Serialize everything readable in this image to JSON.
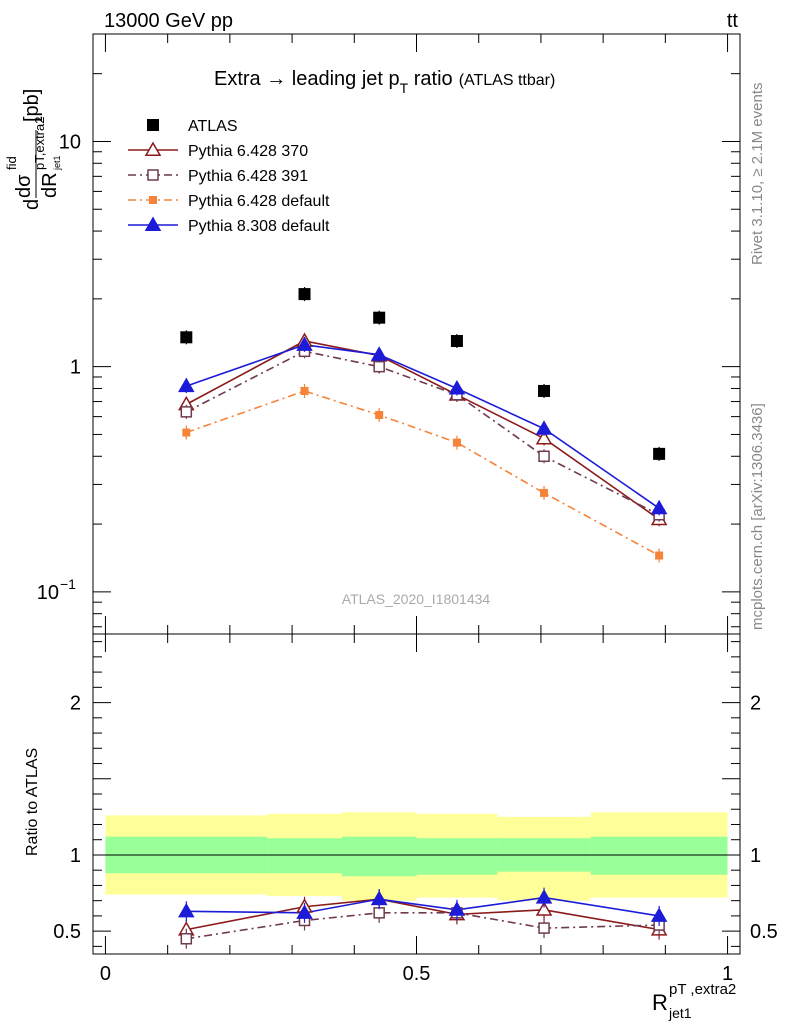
{
  "header": {
    "left": "13000 GeV pp",
    "right_main": "tt",
    "right_bar": "‾"
  },
  "side_text": {
    "rivet": "Rivet 3.1.10, ≥ 2.1M events",
    "mcplots": "mcplots.cern.ch [arXiv:1306.3436]"
  },
  "watermark": "ATLAS_2020_I1801434",
  "chart_data": [
    {
      "panel": "main",
      "type": "scatter",
      "title_main": "Extra → leading jet p",
      "title_sub": "T",
      "title_tail": " ratio",
      "title_note": "(ATLAS ttbar)",
      "ylabel_pre": "d",
      "ylabel_sigma": "dσ",
      "ylabel_sigma_sup": "fid",
      "ylabel_den": "dR",
      "ylabel_den_sup": "pT,extra2",
      "ylabel_den_sub": "jet1",
      "ylabel_unit": "[pb]",
      "yscale": "log",
      "ylim": [
        0.065,
        30
      ],
      "xlim": [
        -0.02,
        1.02
      ],
      "ytick_labels": [
        {
          "value": 10,
          "text": "10"
        },
        {
          "value": 1,
          "text": "1"
        },
        {
          "value": 0.1,
          "base": "10",
          "exp": "−1"
        }
      ],
      "x_bins": [
        [
          0.0,
          0.26
        ],
        [
          0.26,
          0.38
        ],
        [
          0.38,
          0.5
        ],
        [
          0.5,
          0.63
        ],
        [
          0.63,
          0.78
        ],
        [
          0.78,
          1.0
        ]
      ],
      "x": [
        0.13,
        0.32,
        0.44,
        0.565,
        0.705,
        0.89
      ],
      "legend_position": "top-left",
      "series": [
        {
          "name": "ATLAS",
          "color": "#000000",
          "marker": "square",
          "line": "none",
          "values": [
            1.35,
            2.1,
            1.65,
            1.3,
            0.78,
            0.41
          ]
        },
        {
          "name": "Pythia 6.428 370",
          "color": "#8b1a1a",
          "marker": "triangle-open",
          "line": "solid",
          "values": [
            0.68,
            1.3,
            1.12,
            0.75,
            0.48,
            0.21
          ]
        },
        {
          "name": "Pythia 6.428 391",
          "color": "#6e3a4e",
          "marker": "square-open",
          "line": "dashdot",
          "values": [
            0.63,
            1.17,
            1.0,
            0.75,
            0.4,
            0.22
          ]
        },
        {
          "name": "Pythia 6.428 default",
          "color": "#f5843a",
          "marker": "square",
          "line": "dashdot",
          "values": [
            0.51,
            0.78,
            0.61,
            0.46,
            0.275,
            0.145
          ]
        },
        {
          "name": "Pythia 8.308 default",
          "color": "#1c1cd8",
          "marker": "triangle",
          "line": "solid",
          "values": [
            0.82,
            1.25,
            1.13,
            0.8,
            0.53,
            0.235
          ]
        }
      ]
    },
    {
      "panel": "ratio",
      "type": "scatter",
      "ylabel": "Ratio to ATLAS",
      "xlabel_base": "R",
      "xlabel_sup": "pT ,extra2",
      "xlabel_sub": "jet1",
      "ylim": [
        0.35,
        2.45
      ],
      "xlim": [
        -0.02,
        1.02
      ],
      "ytick_labels": [
        {
          "value": 2,
          "text": "2"
        },
        {
          "value": 1,
          "text": "1"
        },
        {
          "value": 0.5,
          "text": "0.5"
        }
      ],
      "xtick_labels": [
        {
          "value": 0,
          "text": "0"
        },
        {
          "value": 0.5,
          "text": "0.5"
        },
        {
          "value": 1,
          "text": "1"
        }
      ],
      "reference_line": 1,
      "bands": {
        "bins": [
          [
            0.0,
            0.26
          ],
          [
            0.26,
            0.38
          ],
          [
            0.38,
            0.5
          ],
          [
            0.5,
            0.63
          ],
          [
            0.63,
            0.78
          ],
          [
            0.78,
            1.0
          ]
        ],
        "yellow": [
          [
            0.74,
            1.26
          ],
          [
            0.73,
            1.27
          ],
          [
            0.7,
            1.28
          ],
          [
            0.72,
            1.27
          ],
          [
            0.7,
            1.25
          ],
          [
            0.72,
            1.28
          ]
        ],
        "green": [
          [
            0.88,
            1.12
          ],
          [
            0.88,
            1.11
          ],
          [
            0.86,
            1.12
          ],
          [
            0.87,
            1.11
          ],
          [
            0.89,
            1.11
          ],
          [
            0.87,
            1.12
          ]
        ],
        "yellow_color": "#ffff99",
        "green_color": "#99ff99"
      },
      "x": [
        0.13,
        0.32,
        0.44,
        0.565,
        0.705,
        0.89
      ],
      "series": [
        {
          "name": "Pythia 6.428 370",
          "color": "#8b1a1a",
          "marker": "triangle-open",
          "line": "solid",
          "values": [
            0.51,
            0.66,
            0.71,
            0.61,
            0.64,
            0.51
          ]
        },
        {
          "name": "Pythia 6.428 391",
          "color": "#6e3a4e",
          "marker": "square-open",
          "line": "dashdot",
          "values": [
            0.45,
            0.57,
            0.62,
            0.62,
            0.52,
            0.54
          ]
        },
        {
          "name": "Pythia 8.308 default",
          "color": "#1c1cd8",
          "marker": "triangle",
          "line": "solid",
          "values": [
            0.63,
            0.62,
            0.71,
            0.64,
            0.72,
            0.6
          ]
        }
      ]
    }
  ]
}
